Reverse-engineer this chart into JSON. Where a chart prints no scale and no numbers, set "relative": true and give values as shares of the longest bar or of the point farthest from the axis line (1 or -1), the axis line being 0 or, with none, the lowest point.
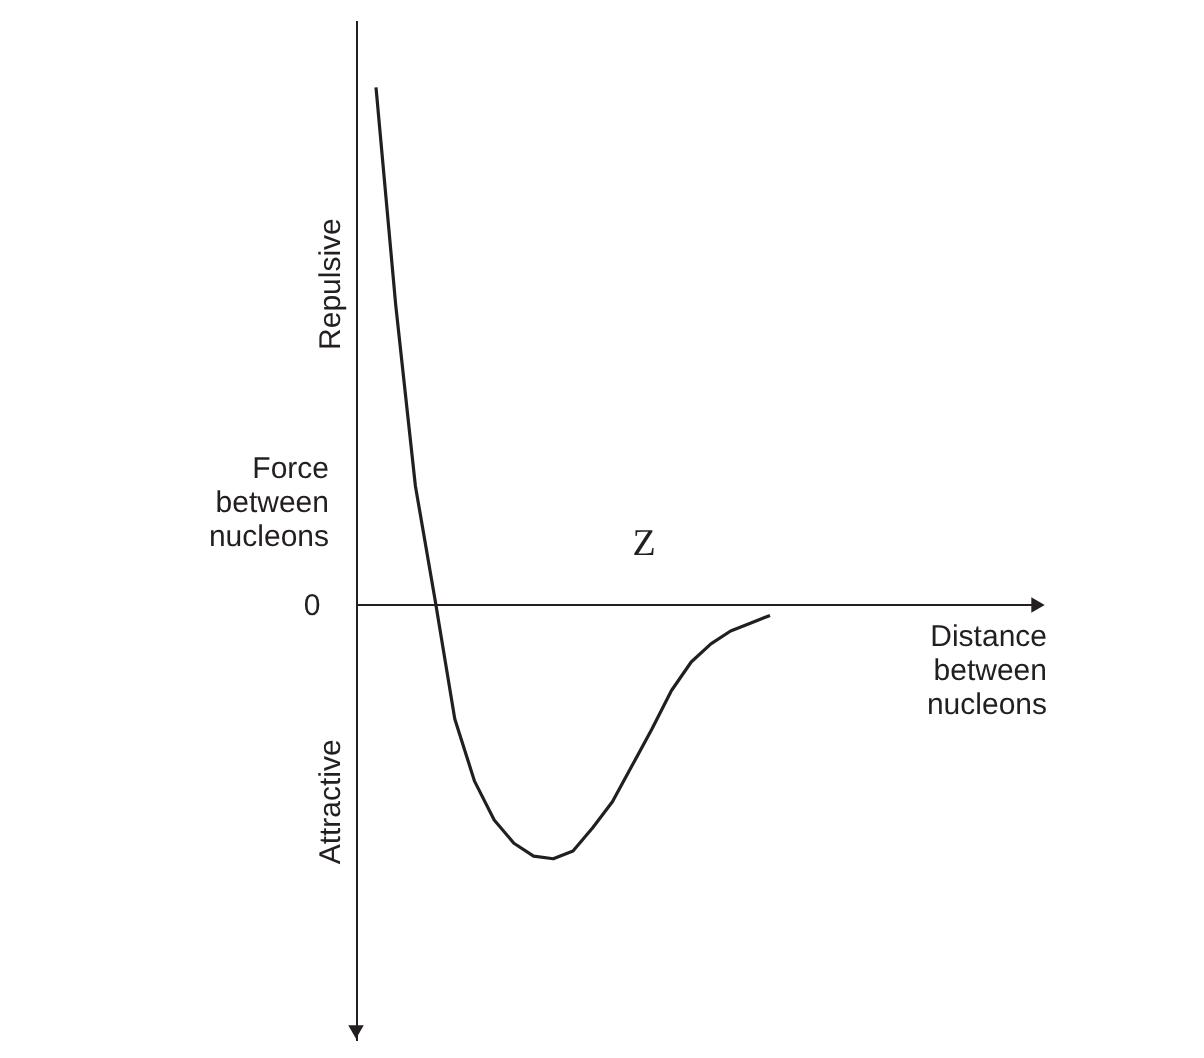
{
  "chart_data": {
    "type": "line",
    "relative": true,
    "ylabel": "Force between nucleons",
    "xlabel": "Distance between nucleons",
    "categories": [
      null,
      null,
      null,
      null,
      null,
      null,
      null,
      null,
      null,
      null,
      null,
      null,
      null,
      null,
      null,
      null,
      null,
      null,
      null,
      null,
      null
    ],
    "series": [
      {
        "color": "#231f20",
        "values": [
          1.0,
          0.58,
          0.23,
          0.01,
          -0.22,
          -0.34,
          -0.415,
          -0.46,
          -0.485,
          -0.49,
          -0.475,
          -0.43,
          -0.38,
          -0.31,
          -0.24,
          -0.165,
          -0.11,
          -0.075,
          -0.05,
          -0.035,
          -0.02
        ]
      }
    ],
    "annotations": [
      "Repulsive",
      "Attractive",
      "0",
      "Z"
    ],
    "marker": "none",
    "line_style": "solid",
    "grid": false
  }
}
